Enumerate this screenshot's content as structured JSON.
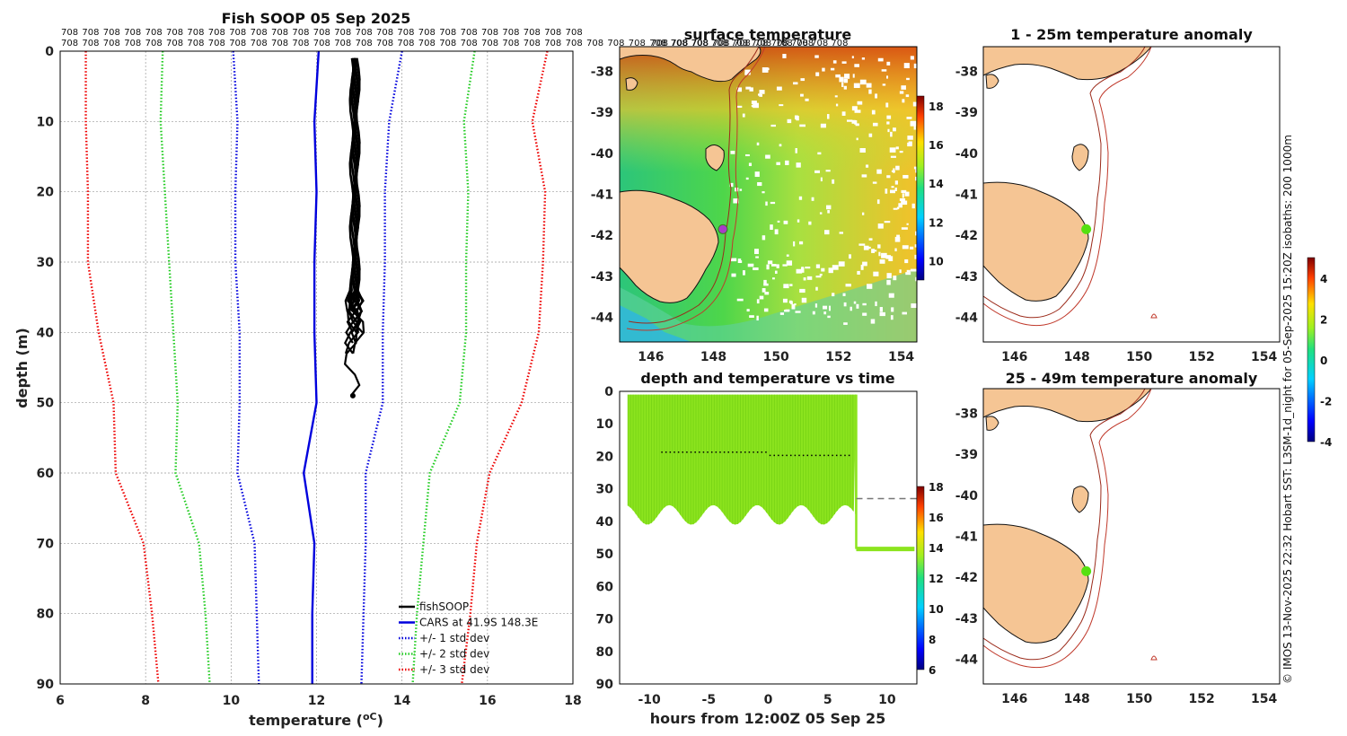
{
  "chart_data": [
    {
      "type": "line",
      "title": "Fish SOOP 05 Sep 2025",
      "xlabel": "temperature (",
      "xlabel_unit": "oC",
      "xlabel_end": ")",
      "ylabel": "depth (m)",
      "xlim": [
        6,
        18
      ],
      "ylim": [
        90,
        0
      ],
      "xticks": [
        6,
        8,
        10,
        12,
        14,
        16,
        18
      ],
      "yticks": [
        0,
        10,
        20,
        30,
        40,
        50,
        60,
        70,
        80,
        90
      ],
      "profile_id_label": "708",
      "profile_id_rows": 2,
      "depth": [
        0,
        10,
        20,
        30,
        40,
        50,
        60,
        70,
        80,
        90
      ],
      "series": [
        {
          "name": "CARS at 41.9S 148.3E",
          "color": "#0000dd",
          "style": "solid",
          "values": [
            12.05,
            11.95,
            12.0,
            11.95,
            11.95,
            12.0,
            11.7,
            11.95,
            11.9,
            11.9
          ]
        },
        {
          "name": "+/- 1 std dev",
          "color": "#0000dd",
          "style": "dotted",
          "lower": [
            10.05,
            10.15,
            10.1,
            10.1,
            10.2,
            10.2,
            10.15,
            10.55,
            10.6,
            10.65
          ],
          "upper": [
            14.0,
            13.7,
            13.6,
            13.6,
            13.55,
            13.55,
            13.15,
            13.15,
            13.1,
            13.05
          ]
        },
        {
          "name": "+/- 2 std dev",
          "color": "#22cc22",
          "style": "dotted",
          "lower": [
            8.4,
            8.35,
            8.45,
            8.55,
            8.65,
            8.75,
            8.7,
            9.25,
            9.4,
            9.5
          ],
          "upper": [
            15.7,
            15.45,
            15.55,
            15.5,
            15.5,
            15.35,
            14.65,
            14.5,
            14.35,
            14.25
          ]
        },
        {
          "name": "+/- 3 std dev",
          "color": "#ee0000",
          "style": "dotted",
          "lower": [
            6.6,
            6.6,
            6.65,
            6.65,
            6.9,
            7.25,
            7.3,
            7.95,
            8.15,
            8.3
          ],
          "upper": [
            17.4,
            17.05,
            17.35,
            17.3,
            17.2,
            16.8,
            16.05,
            15.75,
            15.6,
            15.4
          ]
        },
        {
          "name": "fishSOOP",
          "color": "#000000",
          "style": "solid",
          "note": "cluster of near-vertical profiles near 12.8 to 13.0 oC, 1 to 49 m"
        }
      ],
      "legend_position": "bottom-right"
    },
    {
      "type": "heatmap",
      "title": "surface temperature",
      "xlim": [
        145,
        154.5
      ],
      "ylim": [
        -44.6,
        -37.4
      ],
      "xticks": [
        146,
        148,
        150,
        152,
        154
      ],
      "yticks": [
        -38,
        -39,
        -40,
        -41,
        -42,
        -43,
        -44
      ],
      "colorbar": {
        "range": [
          9,
          18.5
        ],
        "ticks": [
          10,
          12,
          14,
          16,
          18
        ]
      },
      "marker": {
        "lon": 148.3,
        "lat": -41.85,
        "color": "#a83cc8"
      },
      "top_labels": "708 708 708 708 708 708 708 708 708 708"
    },
    {
      "type": "scatter",
      "title": "depth and temperature vs time",
      "xlabel": "hours from 12:00Z 05 Sep 25",
      "xlim": [
        -12.5,
        12.5
      ],
      "ylim": [
        90,
        0
      ],
      "xticks": [
        -10,
        -5,
        0,
        5,
        10
      ],
      "yticks": [
        0,
        10,
        20,
        30,
        40,
        50,
        60,
        70,
        80,
        90
      ],
      "colorbar": {
        "range": [
          6,
          18
        ],
        "ticks": [
          6,
          8,
          10,
          12,
          14,
          16,
          18
        ]
      },
      "dive_band": {
        "t_start": -11.8,
        "t_end": 7.4,
        "depth_top": 1,
        "depth_bottom": 41,
        "temperature": 12.9
      },
      "tow_segment": {
        "t_start": 7.4,
        "t_end": 12.3,
        "depth": 48.5,
        "temperature": 12.9
      },
      "dashed_reference": {
        "t_start": 7.4,
        "t_end": 12.5,
        "depth": 33
      }
    },
    {
      "type": "map",
      "title": "1 - 25m temperature anomaly",
      "xlim": [
        145,
        154.5
      ],
      "ylim": [
        -44.6,
        -37.4
      ],
      "xticks": [
        146,
        148,
        150,
        152,
        154
      ],
      "yticks": [
        -38,
        -39,
        -40,
        -41,
        -42,
        -43,
        -44
      ],
      "marker": {
        "lon": 148.3,
        "lat": -41.85,
        "color": "#55e010"
      }
    },
    {
      "type": "map",
      "title": "25 - 49m temperature anomaly",
      "xlim": [
        145,
        154.5
      ],
      "ylim": [
        -44.6,
        -37.4
      ],
      "xticks": [
        146,
        148,
        150,
        152,
        154
      ],
      "yticks": [
        -38,
        -39,
        -40,
        -41,
        -42,
        -43,
        -44
      ],
      "marker": {
        "lon": 148.3,
        "lat": -41.85,
        "color": "#55e010"
      }
    }
  ],
  "anomaly_colorbar": {
    "range": [
      -4,
      5
    ],
    "ticks": [
      -4,
      -2,
      0,
      2,
      4
    ]
  },
  "side_caption": "© IMOS 13-Nov-2025 22:32 Hobart SST: L3SM-1d_night for 05-Sep-2025 15:20Z isobaths: 200  1000m"
}
